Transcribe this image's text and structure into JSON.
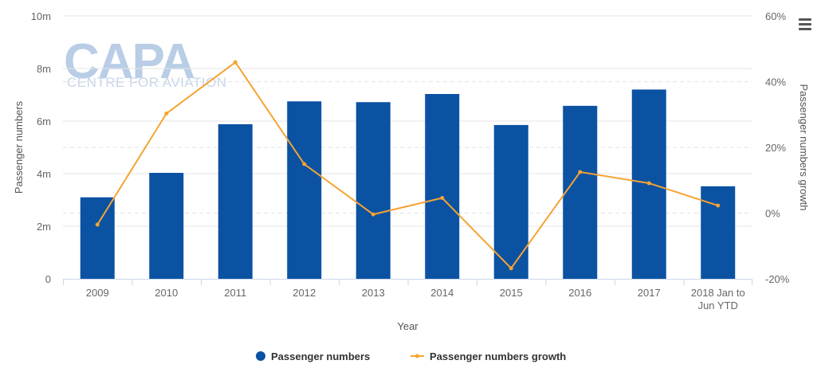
{
  "watermark": {
    "brand": "CAPA",
    "tagline": "CENTRE FOR AVIATION"
  },
  "menu": {
    "icon": "hamburger-menu-icon"
  },
  "chart_data": {
    "type": "bar",
    "xlabel": "Year",
    "categories": [
      "2009",
      "2010",
      "2011",
      "2012",
      "2013",
      "2014",
      "2015",
      "2016",
      "2017",
      "2018 Jan to Jun YTD"
    ],
    "category_lines": [
      [
        "2009"
      ],
      [
        "2010"
      ],
      [
        "2011"
      ],
      [
        "2012"
      ],
      [
        "2013"
      ],
      [
        "2014"
      ],
      [
        "2015"
      ],
      [
        "2016"
      ],
      [
        "2017"
      ],
      [
        "2018 Jan to",
        "Jun YTD"
      ]
    ],
    "left_axis": {
      "title": "Passenger numbers",
      "min": 0,
      "max": 10000000,
      "ticks": [
        0,
        2000000,
        4000000,
        6000000,
        8000000,
        10000000
      ],
      "tick_labels": [
        "0",
        "2m",
        "4m",
        "6m",
        "8m",
        "10m"
      ]
    },
    "right_axis": {
      "title": "Passenger numbers growth",
      "min": -20,
      "max": 60,
      "ticks": [
        -20,
        0,
        20,
        40,
        60
      ],
      "tick_labels": [
        "-20%",
        "0%",
        "20%",
        "40%",
        "60%"
      ]
    },
    "series": [
      {
        "name": "Passenger numbers",
        "type": "bar",
        "axis": "left",
        "color": "#0b52a3",
        "values": [
          3100000,
          4030000,
          5880000,
          6750000,
          6720000,
          7030000,
          5850000,
          6580000,
          7200000,
          3520000
        ]
      },
      {
        "name": "Passenger numbers growth",
        "type": "line",
        "axis": "right",
        "color": "#f5a331",
        "values": [
          -3.5,
          30.3,
          45.9,
          14.9,
          -0.4,
          4.6,
          -16.8,
          12.5,
          9.1,
          2.3
        ]
      }
    ],
    "grid": true,
    "legend_position": "bottom-center"
  }
}
